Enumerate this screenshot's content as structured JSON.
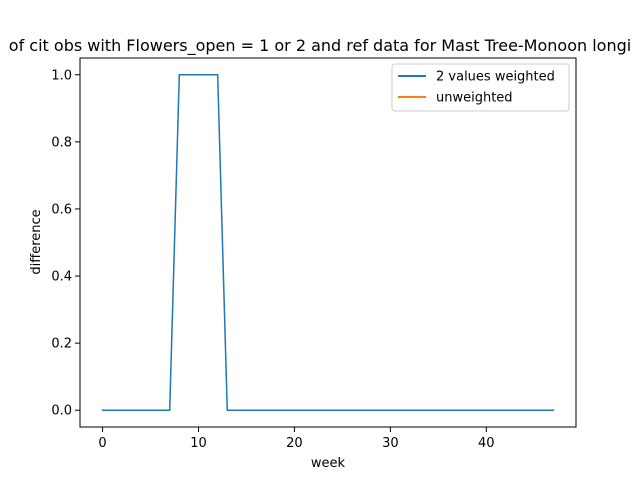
{
  "chart_data": {
    "type": "line",
    "title": "of cit obs with Flowers_open = 1 or 2 and ref data for Mast Tree-Monoon longi",
    "xlabel": "week",
    "ylabel": "difference",
    "xlim": [
      -2.35,
      49.35
    ],
    "ylim": [
      -0.05,
      1.05
    ],
    "xticks": [
      0,
      10,
      20,
      30,
      40
    ],
    "xtick_labels": [
      "0",
      "10",
      "20",
      "30",
      "40"
    ],
    "yticks": [
      0.0,
      0.2,
      0.4,
      0.6,
      0.8,
      1.0
    ],
    "ytick_labels": [
      "0.0",
      "0.2",
      "0.4",
      "0.6",
      "0.8",
      "1.0"
    ],
    "grid": false,
    "legend_position": "top-right",
    "series": [
      {
        "name": "2 values weighted",
        "color": "#1f77b4",
        "x": [
          0,
          1,
          2,
          3,
          4,
          5,
          6,
          7,
          8,
          9,
          10,
          11,
          12,
          13,
          14,
          15,
          16,
          17,
          18,
          19,
          20,
          21,
          22,
          23,
          24,
          25,
          26,
          27,
          28,
          29,
          30,
          31,
          32,
          33,
          34,
          35,
          36,
          37,
          38,
          39,
          40,
          41,
          42,
          43,
          44,
          45,
          46,
          47
        ],
        "values": [
          0,
          0,
          0,
          0,
          0,
          0,
          0,
          0,
          1,
          1,
          1,
          1,
          1,
          0,
          0,
          0,
          0,
          0,
          0,
          0,
          0,
          0,
          0,
          0,
          0,
          0,
          0,
          0,
          0,
          0,
          0,
          0,
          0,
          0,
          0,
          0,
          0,
          0,
          0,
          0,
          0,
          0,
          0,
          0,
          0,
          0,
          0,
          0
        ]
      },
      {
        "name": "unweighted",
        "color": "#ff7f0e",
        "x": [],
        "values": []
      }
    ]
  }
}
